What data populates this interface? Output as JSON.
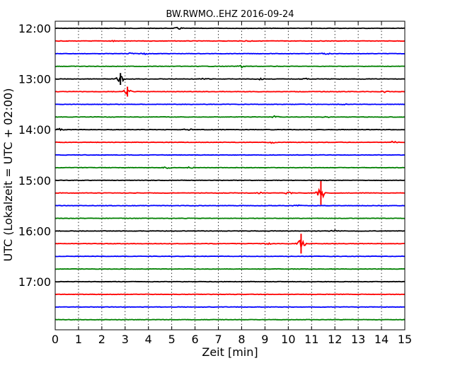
{
  "chart_data": {
    "type": "line",
    "title": "BW.RWMO..EHZ 2016-09-24",
    "xlabel": "Zeit  [min]",
    "ylabel": "UTC (Lokalzeit = UTC + 02:00)",
    "xlim": [
      0,
      15
    ],
    "x_ticks": [
      "0",
      "1",
      "2",
      "3",
      "4",
      "5",
      "6",
      "7",
      "8",
      "9",
      "10",
      "11",
      "12",
      "13",
      "14",
      "15"
    ],
    "y_tick_labels": [
      "12:00",
      "13:00",
      "14:00",
      "15:00",
      "16:00",
      "17:00"
    ],
    "trace_interval_min": 15,
    "trace_color_cycle": [
      "#000000",
      "#ff0000",
      "#0000ff",
      "#008000"
    ],
    "traces_start": "12:00",
    "trace_count": 24,
    "vertical_grid": "dotted",
    "events": [
      {
        "row": 4,
        "minute": 2.8,
        "amp": 0.6
      },
      {
        "row": 5,
        "minute": 3.1,
        "amp": 0.5
      },
      {
        "row": 13,
        "minute": 11.4,
        "amp": 1.2
      },
      {
        "row": 17,
        "minute": 10.55,
        "amp": 1.0
      },
      {
        "row": 0,
        "minute": 5.3,
        "amp": 0.2
      },
      {
        "row": 1,
        "minute": 2.5,
        "amp": 0.15
      },
      {
        "row": 1,
        "minute": 8.3,
        "amp": 0.15
      },
      {
        "row": 2,
        "minute": 3.2,
        "amp": 0.25
      },
      {
        "row": 2,
        "minute": 3.8,
        "amp": 0.15
      },
      {
        "row": 2,
        "minute": 11.6,
        "amp": 0.15
      },
      {
        "row": 3,
        "minute": 8.0,
        "amp": 0.25
      },
      {
        "row": 4,
        "minute": 6.4,
        "amp": 0.15
      },
      {
        "row": 4,
        "minute": 8.8,
        "amp": 0.15
      },
      {
        "row": 4,
        "minute": 10.7,
        "amp": 0.15
      },
      {
        "row": 5,
        "minute": 14.1,
        "amp": 0.15
      },
      {
        "row": 6,
        "minute": 12.3,
        "amp": 0.15
      },
      {
        "row": 7,
        "minute": 9.4,
        "amp": 0.2
      },
      {
        "row": 7,
        "minute": 11.6,
        "amp": 0.15
      },
      {
        "row": 8,
        "minute": 0.2,
        "amp": 0.2
      },
      {
        "row": 8,
        "minute": 5.7,
        "amp": 0.2
      },
      {
        "row": 9,
        "minute": 9.3,
        "amp": 0.15
      },
      {
        "row": 9,
        "minute": 14.5,
        "amp": 0.2
      },
      {
        "row": 11,
        "minute": 4.8,
        "amp": 0.15
      },
      {
        "row": 11,
        "minute": 5.8,
        "amp": 0.15
      },
      {
        "row": 13,
        "minute": 8.8,
        "amp": 0.15
      },
      {
        "row": 13,
        "minute": 10.0,
        "amp": 0.2
      },
      {
        "row": 14,
        "minute": 10.4,
        "amp": 0.15
      },
      {
        "row": 16,
        "minute": 12.0,
        "amp": 0.2
      },
      {
        "row": 17,
        "minute": 9.1,
        "amp": 0.15
      }
    ]
  }
}
